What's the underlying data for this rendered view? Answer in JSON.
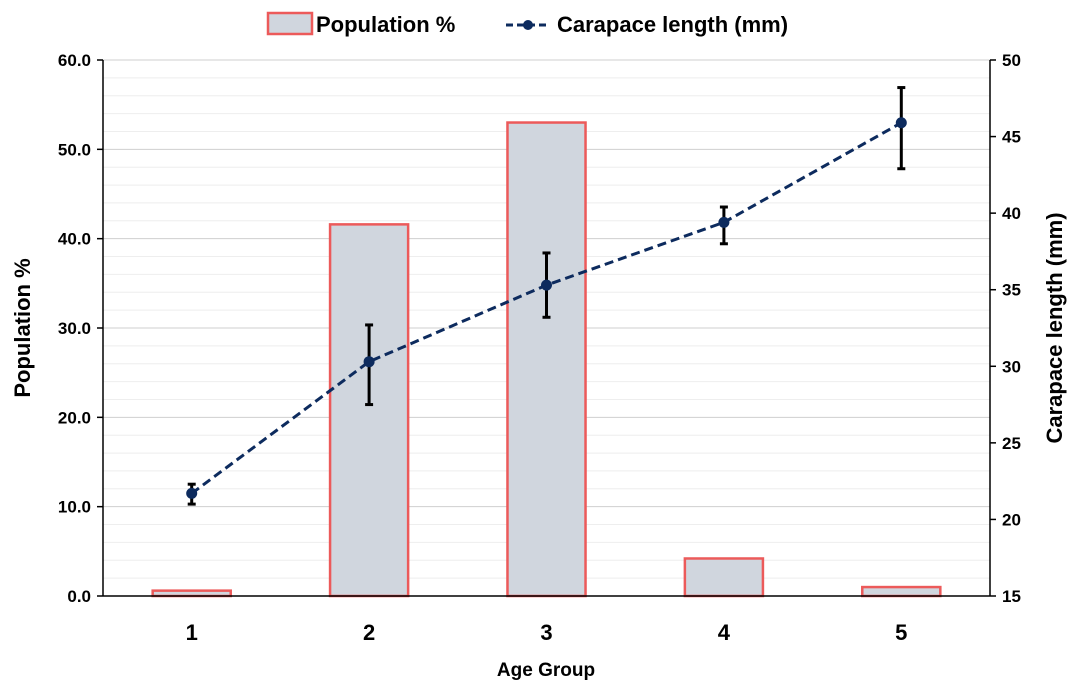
{
  "chart_data": {
    "type": "bar",
    "categories": [
      "1",
      "2",
      "3",
      "4",
      "5"
    ],
    "xlabel": "Age Group",
    "series": [
      {
        "name": "Population %",
        "type": "bar",
        "axis": "left",
        "values": [
          0.6,
          41.6,
          53.0,
          4.2,
          1.0
        ],
        "fill": "#d0d6de",
        "stroke": "#ec5a5a"
      },
      {
        "name": "Carapace length (mm)",
        "type": "line",
        "axis": "right",
        "style": "dashed",
        "marker": "circle",
        "values": [
          21.7,
          30.3,
          35.3,
          39.4,
          45.9
        ],
        "error_low": [
          21.0,
          27.5,
          33.2,
          38.0,
          42.9
        ],
        "error_high": [
          22.3,
          32.7,
          37.4,
          40.4,
          48.2
        ],
        "color": "#0d2b5e"
      }
    ],
    "y_left": {
      "label": "Population %",
      "ylim": [
        0,
        60
      ],
      "ticks": [
        0,
        10,
        20,
        30,
        40,
        50,
        60
      ],
      "tick_labels": [
        "0.0",
        "10.0",
        "20.0",
        "30.0",
        "40.0",
        "50.0",
        "60.0"
      ]
    },
    "y_right": {
      "label": "Carapace length (mm)",
      "ylim": [
        15,
        50
      ],
      "ticks": [
        15,
        20,
        25,
        30,
        35,
        40,
        45,
        50
      ],
      "tick_labels": [
        "15",
        "20",
        "25",
        "30",
        "35",
        "40",
        "45",
        "50"
      ]
    },
    "grid": true,
    "legend_position": "top-center"
  }
}
